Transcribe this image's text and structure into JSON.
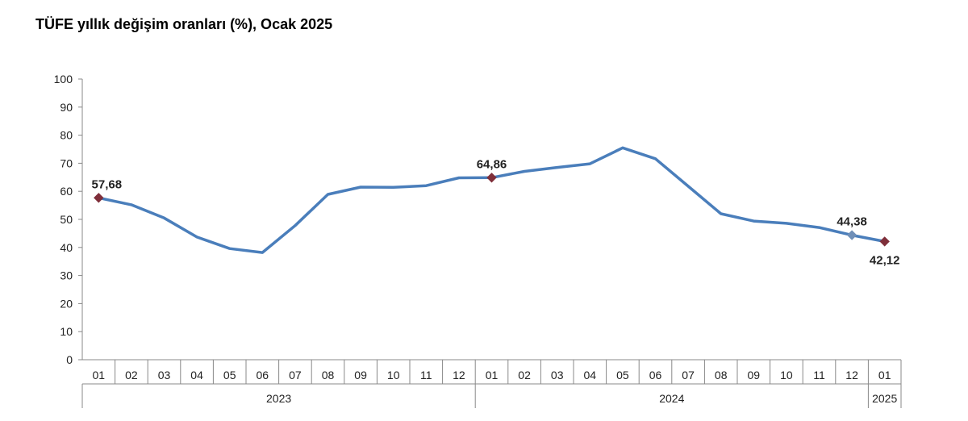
{
  "chart_data": {
    "type": "line",
    "title": "TÜFE yıllık değişim oranları (%), Ocak 2025",
    "xlabel": "",
    "ylabel": "",
    "ylim": [
      0,
      100
    ],
    "yticks": [
      "0",
      "10",
      "20",
      "30",
      "40",
      "50",
      "60",
      "70",
      "80",
      "90",
      "100"
    ],
    "grid": false,
    "categories": [
      "01",
      "02",
      "03",
      "04",
      "05",
      "06",
      "07",
      "08",
      "09",
      "10",
      "11",
      "12",
      "01",
      "02",
      "03",
      "04",
      "05",
      "06",
      "07",
      "08",
      "09",
      "10",
      "11",
      "12",
      "01"
    ],
    "years": [
      {
        "label": "2023",
        "start": 0,
        "end": 11
      },
      {
        "label": "2024",
        "start": 12,
        "end": 23
      },
      {
        "label": "2025",
        "start": 24,
        "end": 24
      }
    ],
    "series": [
      {
        "color": "#4a7ebb",
        "values": [
          57.68,
          55.2,
          50.5,
          43.7,
          39.6,
          38.2,
          47.8,
          58.9,
          61.5,
          61.4,
          62.0,
          64.8,
          64.86,
          67.1,
          68.5,
          69.8,
          75.5,
          71.6,
          61.8,
          52.0,
          49.4,
          48.6,
          47.1,
          44.38,
          42.12
        ]
      }
    ],
    "markers": [
      {
        "index": 0,
        "label": "57,68",
        "color": "#7f2f3a"
      },
      {
        "index": 12,
        "label": "64,86",
        "color": "#7f2f3a"
      },
      {
        "index": 23,
        "label": "44,38",
        "color": "#6f8fb8"
      },
      {
        "index": 24,
        "label": "42,12",
        "color": "#7f2f3a"
      }
    ]
  }
}
